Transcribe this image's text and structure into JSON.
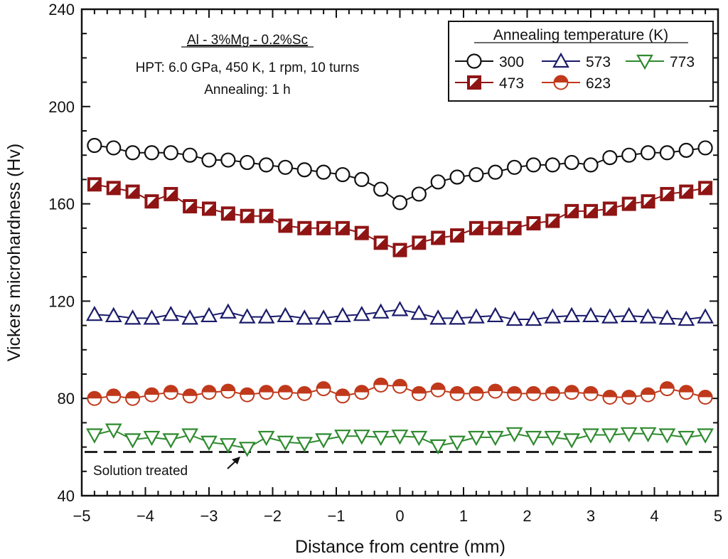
{
  "chart_data": {
    "type": "line",
    "xlabel": "Distance from centre (mm)",
    "ylabel": "Vickers microhardness (Hv)",
    "xlim": [
      -5,
      5
    ],
    "ylim": [
      40,
      240
    ],
    "xticks": [
      -5,
      -4,
      -3,
      -2,
      -1,
      0,
      1,
      2,
      3,
      4,
      5
    ],
    "xtick_labels": [
      "−5",
      "−4",
      "−3",
      "−2",
      "−1",
      "0",
      "1",
      "2",
      "3",
      "4",
      "5"
    ],
    "yticks": [
      40,
      80,
      120,
      160,
      200,
      240
    ],
    "ytick_labels": [
      "40",
      "80",
      "120",
      "160",
      "200",
      "240"
    ],
    "x_minor_step": 0.2,
    "y_minor_step": 10,
    "grid": false,
    "annotations": {
      "alloy": "Al - 3%Mg - 0.2%Sc",
      "hpt": "HPT: 6.0 GPa, 450 K, 1 rpm, 10 turns",
      "annealing": "Annealing: 1 h",
      "solution_treated": "Solution treated"
    },
    "legend": {
      "title": "Annealing temperature (K)",
      "placement": "top-right"
    },
    "x": [
      -4.8,
      -4.5,
      -4.2,
      -3.9,
      -3.6,
      -3.3,
      -3.0,
      -2.7,
      -2.4,
      -2.1,
      -1.8,
      -1.5,
      -1.2,
      -0.9,
      -0.6,
      -0.3,
      0.0,
      0.3,
      0.6,
      0.9,
      1.2,
      1.5,
      1.8,
      2.1,
      2.4,
      2.7,
      3.0,
      3.3,
      3.6,
      3.9,
      4.2,
      4.5,
      4.8
    ],
    "series": [
      {
        "name": "300",
        "marker": "circle-open",
        "color": "#111111",
        "values": [
          184,
          183,
          181,
          181,
          181,
          180,
          178,
          178,
          177,
          176,
          175,
          174,
          173,
          172,
          170,
          166,
          160.5,
          164,
          169,
          171,
          172,
          173,
          175,
          176,
          176,
          177,
          176,
          179,
          180,
          181,
          181,
          182,
          183
        ]
      },
      {
        "name": "473",
        "marker": "square-half",
        "color": "#8f1414",
        "values": [
          168,
          166.5,
          165,
          161,
          164,
          159,
          158,
          156,
          155,
          155,
          151,
          150,
          150,
          150,
          148,
          144,
          141,
          144,
          146,
          147,
          150,
          150,
          150,
          152,
          153,
          157,
          157,
          158,
          160,
          161,
          164,
          165,
          166.5
        ]
      },
      {
        "name": "573",
        "marker": "triangle-up-open",
        "color": "#1b1b6b",
        "values": [
          114.5,
          114,
          113,
          113,
          114.5,
          113,
          114,
          115.5,
          113.5,
          113.5,
          114,
          113,
          113,
          114,
          114.5,
          115.5,
          116.5,
          115,
          113,
          113,
          113.5,
          114,
          112.5,
          112.5,
          113.5,
          114,
          114,
          113.5,
          114,
          113.5,
          113,
          112.5,
          113.5
        ]
      },
      {
        "name": "623",
        "marker": "circle-half",
        "color": "#c0391b",
        "values": [
          80,
          81,
          80,
          81.5,
          82.5,
          81,
          82.5,
          83,
          81.5,
          82.5,
          82.5,
          82,
          84,
          81,
          82.5,
          85.5,
          85,
          82,
          83.5,
          82,
          82,
          83,
          82,
          82,
          82,
          82.5,
          82,
          80.5,
          80.5,
          81.5,
          84,
          82.5,
          80.5
        ]
      },
      {
        "name": "773",
        "marker": "triangle-down-open",
        "color": "#2e8a2e",
        "values": [
          65,
          67,
          63,
          64,
          63,
          65,
          62,
          61,
          59.5,
          64,
          62,
          61.5,
          63,
          64.5,
          64.5,
          64,
          64.5,
          64,
          60.5,
          62,
          64,
          64,
          65.5,
          64,
          64,
          63,
          65,
          65,
          65.5,
          65.5,
          65,
          64,
          65
        ]
      }
    ],
    "reference_line": {
      "label": "Solution treated",
      "y": 58,
      "style": "dashed",
      "color": "#222222"
    }
  }
}
